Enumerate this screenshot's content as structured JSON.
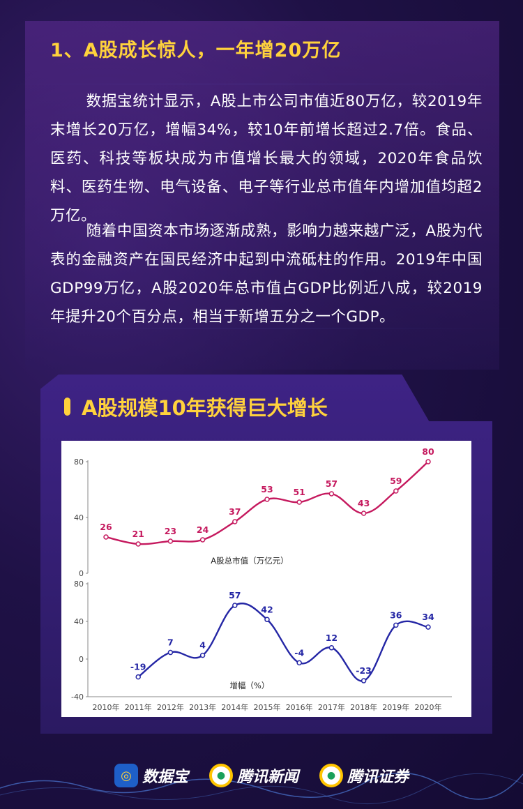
{
  "section": {
    "heading": "1、A股成长惊人，一年增20万亿",
    "paragraphs": [
      "数据宝统计显示，A股上市公司市值近80万亿，较2019年末增长20万亿，增幅34%，较10年前增长超过2.7倍。食品、医药、科技等板块成为市值增长最大的领域，2020年食品饮料、医药生物、电气设备、电子等行业总市值年内增加值均超2万亿。",
      "随着中国资本市场逐渐成熟，影响力越来越广泛，A股为代表的金融资产在国民经济中起到中流砥柱的作用。2019年中国GDP99万亿，A股2020年总市值占GDP比例近八成，较2019年提升20个百分点，相当于新增五分之一个GDP。"
    ]
  },
  "chart_card": {
    "title": "A股规模10年获得巨大增长"
  },
  "chart_data": [
    {
      "type": "line",
      "categories": [
        "2010年",
        "2011年",
        "2012年",
        "2013年",
        "2014年",
        "2015年",
        "2016年",
        "2017年",
        "2018年",
        "2019年",
        "2020年"
      ],
      "series": [
        {
          "name": "A股总市值（万亿元）",
          "values": [
            26,
            21,
            23,
            24,
            37,
            53,
            51,
            57,
            43,
            59,
            80
          ],
          "color": "#c5195e"
        }
      ],
      "ylim": [
        0,
        80
      ],
      "yticks": [
        "0",
        "40",
        "80"
      ],
      "grid": false
    },
    {
      "type": "line",
      "categories": [
        "2010年",
        "2011年",
        "2012年",
        "2013年",
        "2014年",
        "2015年",
        "2016年",
        "2017年",
        "2018年",
        "2019年",
        "2020年"
      ],
      "series": [
        {
          "name": "增幅（%）",
          "values": [
            null,
            -19,
            7,
            4,
            57,
            42,
            -4,
            12,
            -23,
            36,
            34
          ],
          "color": "#2426a5"
        }
      ],
      "ylim": [
        -40,
        80
      ],
      "yticks": [
        "-40",
        "0",
        "40",
        "80"
      ],
      "grid": false
    }
  ],
  "footer": {
    "logos": [
      {
        "name": "数据宝",
        "icon": "shujubao-logo-icon"
      },
      {
        "name": "腾讯新闻",
        "icon": "tencent-news-logo-icon"
      },
      {
        "name": "腾讯证券",
        "icon": "tencent-securities-logo-icon"
      }
    ]
  }
}
